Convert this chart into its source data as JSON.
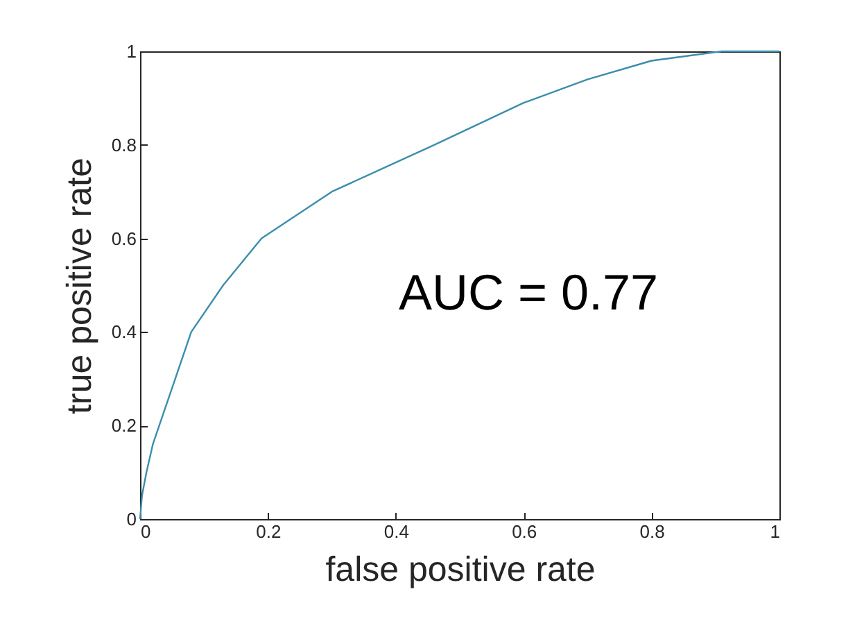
{
  "chart_data": {
    "type": "line",
    "xlabel": "false positive rate",
    "ylabel": "true positive rate",
    "annotations": [
      "AUC = 0.77"
    ],
    "x": [
      0,
      0.003,
      0.01,
      0.02,
      0.03,
      0.055,
      0.08,
      0.13,
      0.19,
      0.3,
      0.46,
      0.6,
      0.7,
      0.8,
      0.91,
      1
    ],
    "series": [
      {
        "color": "#3c8dab",
        "values": [
          0,
          0.05,
          0.1,
          0.16,
          0.2,
          0.3,
          0.4,
          0.5,
          0.6,
          0.7,
          0.8,
          0.89,
          0.94,
          0.98,
          1,
          1
        ]
      }
    ],
    "xlim": [
      0,
      1
    ],
    "ylim": [
      0,
      1
    ],
    "xticks": [
      0,
      0.2,
      0.4,
      0.6,
      0.8,
      1
    ],
    "yticks": [
      0,
      0.2,
      0.4,
      0.6,
      0.8,
      1
    ],
    "grid": false,
    "legend": false,
    "marker": "none",
    "line_style": "solid"
  }
}
